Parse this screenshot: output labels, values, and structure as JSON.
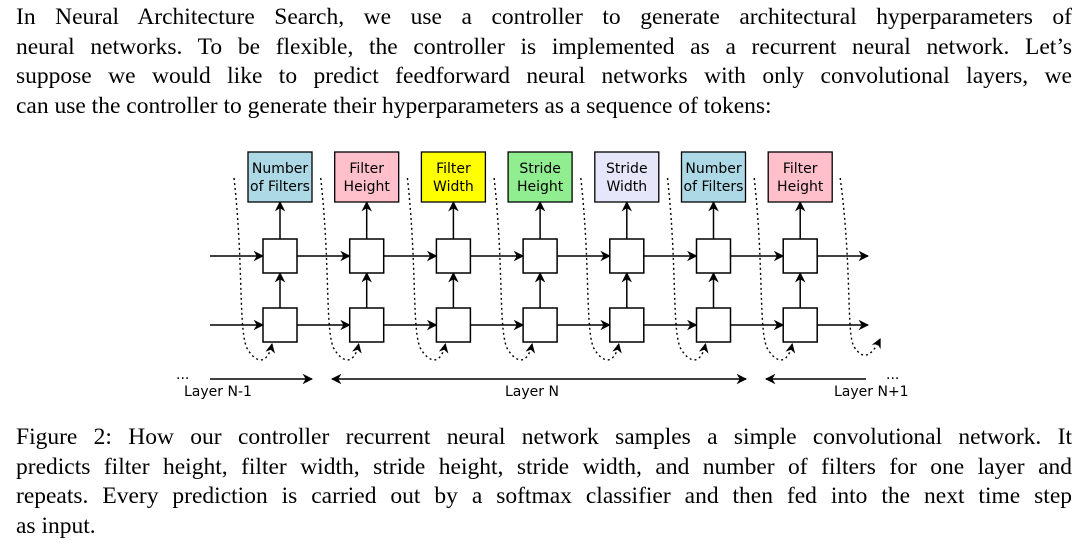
{
  "intro": {
    "lines": [
      "In Neural Architecture Search, we use a controller to generate architectural hyperparameters of",
      "neural networks. To be flexible, the controller is implemented as a recurrent neural network. Let’s",
      "suppose we would like to predict feedforward neural networks with only convolutional layers, we",
      "can use the controller to generate their hyperparameters as a sequence of tokens:"
    ]
  },
  "figure": {
    "tokens": [
      {
        "line1": "Number",
        "line2": "of Filters",
        "color": "#ADD8E6"
      },
      {
        "line1": "Filter",
        "line2": "Height",
        "color": "#FFC0CB"
      },
      {
        "line1": "Filter",
        "line2": "Width",
        "color": "#FFFF00"
      },
      {
        "line1": "Stride",
        "line2": "Height",
        "color": "#90EE90"
      },
      {
        "line1": "Stride",
        "line2": "Width",
        "color": "#E6E6FA"
      },
      {
        "line1": "Number",
        "line2": "of Filters",
        "color": "#ADD8E6"
      },
      {
        "line1": "Filter",
        "line2": "Height",
        "color": "#FFC0CB"
      }
    ],
    "ellipsis_left": "...",
    "ellipsis_right": "...",
    "layer_labels": {
      "prev": "Layer N-1",
      "current": "Layer N",
      "next": "Layer N+1"
    }
  },
  "caption": {
    "lines": [
      "Figure 2: How our controller recurrent neural network samples a simple convolutional network. It",
      "predicts filter height, filter width, stride height, stride width, and number of filters for one layer and",
      "repeats. Every prediction is carried out by a softmax classifier and then fed into the next time step",
      "as input."
    ]
  }
}
